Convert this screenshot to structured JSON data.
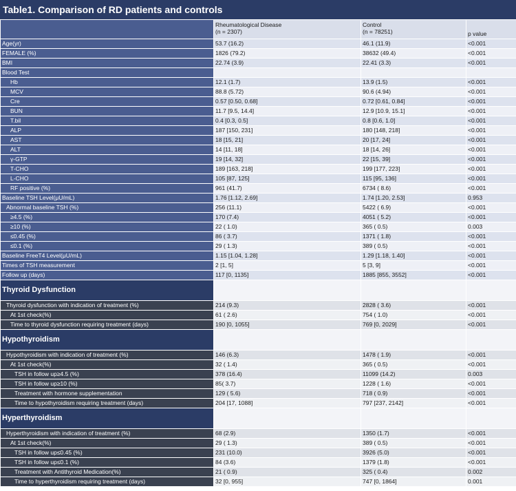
{
  "title": "Table1. Comparison of RD patients and controls",
  "header": {
    "rd_line1": "Rheumatological Disease",
    "rd_line2": "(n = 2307)",
    "ctrl_line1": "Control",
    "ctrl_line2": "(n = 78251)",
    "p": "p value"
  },
  "baseline": [
    {
      "label": "Age(yr)",
      "rd": "53.7 (16.2)",
      "ctrl": "46.1 (11.9)",
      "p": "<0.001"
    },
    {
      "label": "FEMALE (%)",
      "rd": "1826 (79.2)",
      "ctrl": "38632 (49.4)",
      "p": "<0.001"
    },
    {
      "label": "BMI",
      "rd": "22.74 (3.9)",
      "ctrl": "22.41 (3.3)",
      "p": "<0.001"
    },
    {
      "label": "Blood Test",
      "rd": "",
      "ctrl": "",
      "p": ""
    },
    {
      "label": "Hb",
      "rd": "12.1 (1.7)",
      "ctrl": "13.9 (1.5)",
      "p": "<0.001"
    },
    {
      "label": "MCV",
      "rd": "88.8 (5.72)",
      "ctrl": "90.6 (4.94)",
      "p": "<0.001"
    },
    {
      "label": "Cre",
      "rd": "0.57 [0.50, 0.68]",
      "ctrl": "0.72 [0.61, 0.84]",
      "p": "<0.001"
    },
    {
      "label": "BUN",
      "rd": "11.7 [9.5, 14.4]",
      "ctrl": "12.9 [10.9, 15.1]",
      "p": "<0.001"
    },
    {
      "label": "T.bil",
      "rd": "0.4 [0.3, 0.5]",
      "ctrl": "0.8 [0.6, 1.0]",
      "p": "<0.001"
    },
    {
      "label": "ALP",
      "rd": "187 [150, 231]",
      "ctrl": "180 [148, 218]",
      "p": "<0.001"
    },
    {
      "label": "AST",
      "rd": "18 [15, 21]",
      "ctrl": "20 [17, 24]",
      "p": "<0.001"
    },
    {
      "label": "ALT",
      "rd": "14 [11, 18]",
      "ctrl": "18 [14, 26]",
      "p": "<0.001"
    },
    {
      "label": "γ-GTP",
      "rd": "19 [14, 32]",
      "ctrl": "22 [15, 39]",
      "p": "<0.001"
    },
    {
      "label": "T-CHO",
      "rd": "189 [163, 218]",
      "ctrl": "199 [177, 223]",
      "p": "<0.001"
    },
    {
      "label": "L-CHO",
      "rd": "105 [87, 125]",
      "ctrl": "115 [95, 136]",
      "p": "<0.001"
    },
    {
      "label": "RF positive (%)",
      "rd": "961 (41.7)",
      "ctrl": "6734 ( 8.6)",
      "p": "<0.001"
    },
    {
      "label": "Baseline TSH Level(μU/mL)",
      "rd": "1.76 [1.12, 2.69]",
      "ctrl": "1.74 [1.20, 2.53]",
      "p": "0.953"
    },
    {
      "label": "Abnormal baseline TSH (%)",
      "rd": "256 (11.1)",
      "ctrl": "5422 ( 6.9)",
      "p": "<0.001"
    },
    {
      "label": "≥4.5 (%)",
      "rd": "170 (7.4)",
      "ctrl": "4051 ( 5.2)",
      "p": "<0.001"
    },
    {
      "label": "≥10 (%)",
      "rd": "22 ( 1.0)",
      "ctrl": "365 ( 0.5)",
      "p": "0.003"
    },
    {
      "label": "≤0.45 (%)",
      "rd": "86 ( 3.7)",
      "ctrl": "1371 ( 1.8)",
      "p": "<0.001"
    },
    {
      "label": "≤0.1 (%)",
      "rd": "29 ( 1.3)",
      "ctrl": "389 ( 0.5)",
      "p": "<0.001"
    },
    {
      "label": "Baseline FreeT4 Level(μU/mL)",
      "rd": "1.15 [1.04, 1.28]",
      "ctrl": "1.29 [1.18, 1.40]",
      "p": "<0.001"
    },
    {
      "label": "Times of TSH measurement",
      "rd": "2 [1, 5]",
      "ctrl": "5 [3, 9]",
      "p": "<0.001"
    },
    {
      "label": "Follow up (days)",
      "rd": "117 [0, 1135]",
      "ctrl": "1885 [855, 3552]",
      "p": "<0.001"
    }
  ],
  "sections": [
    {
      "title": "Thyroid Dysfunction",
      "rows": [
        {
          "label": "Thyroid dysfunction with indication of treatment (%)",
          "rd": "214 (9.3)",
          "ctrl": "2828 ( 3.6)",
          "p": "<0.001"
        },
        {
          "label": "At 1st check(%)",
          "rd": "61 ( 2.6)",
          "ctrl": "754 ( 1.0)",
          "p": "<0.001"
        },
        {
          "label": "Time to thyroid dysfunction requiring treatment (days)",
          "rd": "190 [0, 1055]",
          "ctrl": "769 [0, 2029]",
          "p": "<0.001"
        }
      ]
    },
    {
      "title": "Hypothyroidism",
      "rows": [
        {
          "label": "Hypothyroidism with indication of treatment (%)",
          "rd": "146 (6.3)",
          "ctrl": "1478 ( 1.9)",
          "p": "<0.001"
        },
        {
          "label": "At 1st check(%)",
          "rd": "32 ( 1.4)",
          "ctrl": "365 ( 0.5)",
          "p": "<0.001"
        },
        {
          "label": "TSH in follow up≥4.5 (%)",
          "rd": "378 (16.4)",
          "ctrl": "11099 (14.2)",
          "p": "0.003"
        },
        {
          "label": "TSH in follow up≥10 (%)",
          "rd": "85( 3.7)",
          "ctrl": "1228 ( 1.6)",
          "p": "<0.001"
        },
        {
          "label": "Treatment with hormone supplementation",
          "rd": "129 ( 5.6)",
          "ctrl": "718 ( 0.9)",
          "p": "<0.001"
        },
        {
          "label": "Time to hypothyroidism requiring treatment (days)",
          "rd": "204 [17, 1088]",
          "ctrl": "797 [237, 2142]",
          "p": "<0.001"
        }
      ]
    },
    {
      "title": "Hyperthyroidism",
      "rows": [
        {
          "label": "Hyperthyroidism with indication of treatment (%)",
          "rd": "68 (2.9)",
          "ctrl": "1350 (1.7)",
          "p": "<0.001"
        },
        {
          "label": "At 1st check(%)",
          "rd": "29 ( 1.3)",
          "ctrl": "389 ( 0.5)",
          "p": "<0.001"
        },
        {
          "label": "TSH in follow up≤0.45 (%)",
          "rd": "231 (10.0)",
          "ctrl": "3926 (5.0)",
          "p": "<0.001"
        },
        {
          "label": "TSH in follow up≤0.1 (%)",
          "rd": "84 (3.6)",
          "ctrl": "1379 (1.8)",
          "p": "<0.001"
        },
        {
          "label": "Treatment with Antithyroid Medication(%)",
          "rd": "21 ( 0.9)",
          "ctrl": "325 ( 0.4)",
          "p": "0.002"
        },
        {
          "label": "Time to hyperthyroidism requiring treatment (days)",
          "rd": "32 [0, 955]",
          "ctrl": "747 [0, 1864]",
          "p": "0.001"
        }
      ]
    }
  ]
}
